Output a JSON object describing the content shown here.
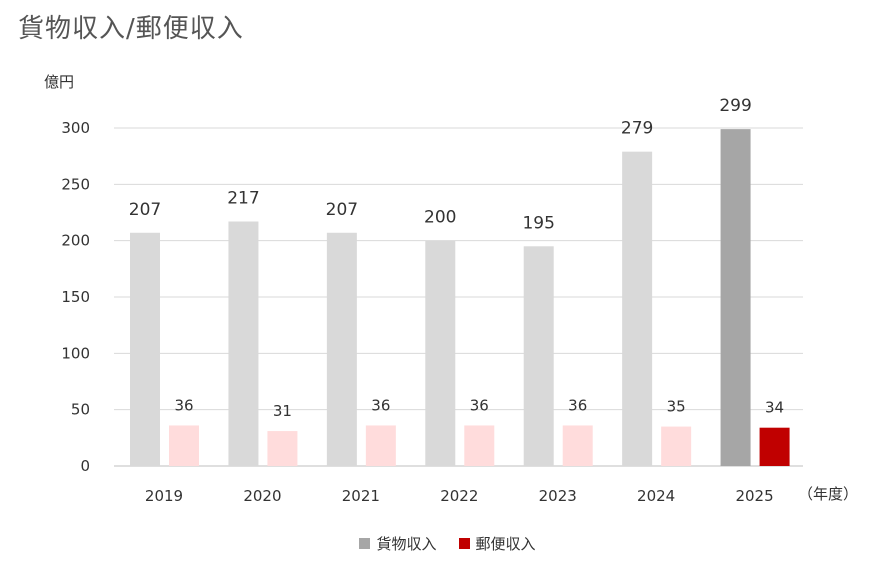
{
  "chart_data": {
    "type": "bar",
    "title": "貨物収入/郵便収入",
    "ylabel": "億円",
    "xlabel": "（年度）",
    "ylim": [
      0,
      300
    ],
    "yticks": [
      0,
      50,
      100,
      150,
      200,
      250,
      300
    ],
    "grid": true,
    "legend_position": "bottom",
    "categories": [
      "2019",
      "2020",
      "2021",
      "2022",
      "2023",
      "2024",
      "2025"
    ],
    "series": [
      {
        "name": "貨物収入",
        "values": [
          207,
          217,
          207,
          200,
          195,
          279,
          299
        ],
        "color": "#d9d9d9",
        "highlight_color": "#a6a6a6",
        "legend_color": "#a6a6a6"
      },
      {
        "name": "郵便収入",
        "values": [
          36,
          31,
          36,
          36,
          36,
          35,
          34
        ],
        "color": "#ffdcdc",
        "highlight_color": "#c00000",
        "legend_color": "#c00000"
      }
    ],
    "highlight_category": "2025"
  }
}
